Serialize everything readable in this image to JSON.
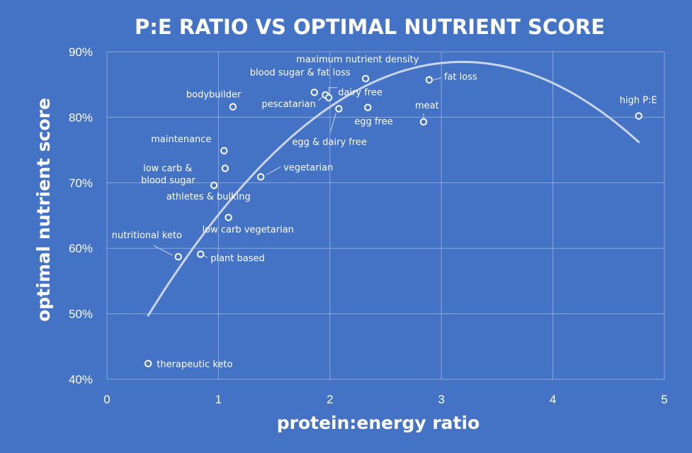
{
  "chart_data": {
    "type": "scatter",
    "title": "P:E RATIO VS OPTIMAL NUTRIENT SCORE",
    "xlabel": "protein:energy ratio",
    "ylabel": "optimal nutrient  score",
    "xlim": [
      0,
      5
    ],
    "ylim": [
      40,
      90
    ],
    "x_ticks": [
      0,
      1,
      2,
      3,
      4,
      5
    ],
    "x_tick_labels": [
      "0",
      "1",
      "2",
      "3",
      "4",
      "5"
    ],
    "y_ticks": [
      40,
      50,
      60,
      70,
      80,
      90
    ],
    "y_tick_labels": [
      "40%",
      "50%",
      "60%",
      "70%",
      "80%",
      "90%"
    ],
    "grid": true,
    "points": [
      {
        "label": "therapeutic keto",
        "x": 0.37,
        "y": 42.4
      },
      {
        "label": "nutritional keto",
        "x": 0.64,
        "y": 58.7
      },
      {
        "label": "plant based",
        "x": 0.84,
        "y": 59.1
      },
      {
        "label": "low carb & blood sugar",
        "x": 0.96,
        "y": 69.6
      },
      {
        "label": "athletes & bulking",
        "x": 1.06,
        "y": 72.2
      },
      {
        "label": "maintenance",
        "x": 1.05,
        "y": 74.9
      },
      {
        "label": "low carb vegetarian",
        "x": 1.09,
        "y": 64.7
      },
      {
        "label": "bodybuilder",
        "x": 1.13,
        "y": 81.6
      },
      {
        "label": "vegetarian",
        "x": 1.38,
        "y": 70.9
      },
      {
        "label": "blood sugar & fat loss",
        "x": 1.86,
        "y": 83.8
      },
      {
        "label": "pescatarian",
        "x": 1.96,
        "y": 83.4
      },
      {
        "label": "dairy free",
        "x": 1.99,
        "y": 83.0
      },
      {
        "label": "egg & dairy free",
        "x": 2.08,
        "y": 81.3
      },
      {
        "label": "maximum nutrient density",
        "x": 2.32,
        "y": 85.9
      },
      {
        "label": "egg free",
        "x": 2.34,
        "y": 81.5
      },
      {
        "label": "meat",
        "x": 2.84,
        "y": 79.3
      },
      {
        "label": "fat loss",
        "x": 2.89,
        "y": 85.7
      },
      {
        "label": "high P:E",
        "x": 4.77,
        "y": 80.2
      }
    ],
    "trendline": {
      "type": "polynomial",
      "order": 2,
      "a": -4.88,
      "b": 31.1,
      "c": 38.9,
      "x_range": [
        0.37,
        4.77
      ]
    }
  }
}
